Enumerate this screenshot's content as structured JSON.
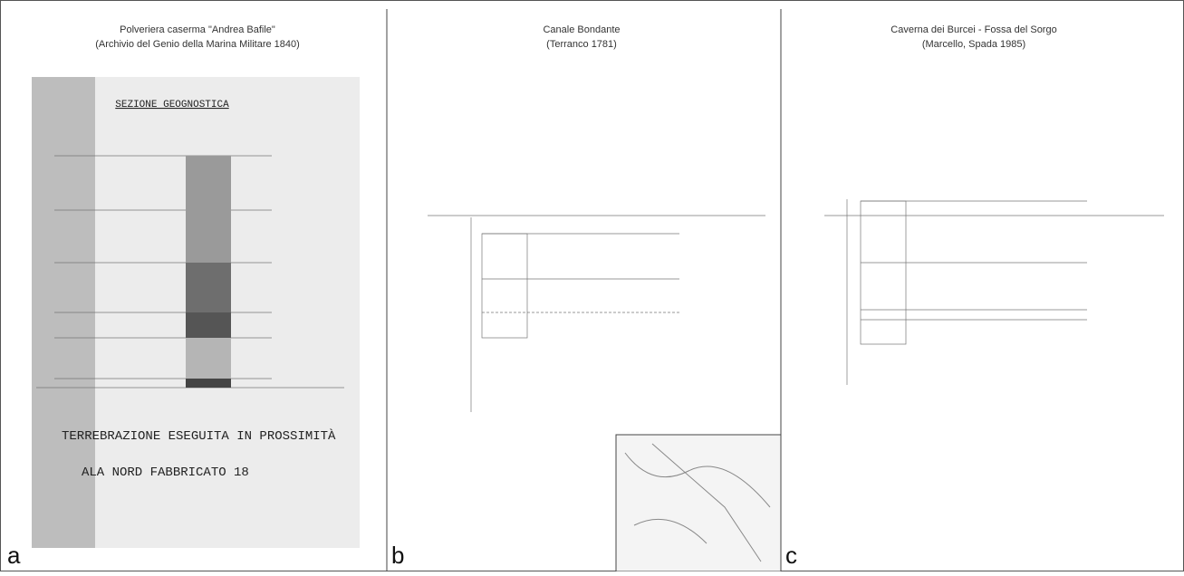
{
  "panels": [
    {
      "label": "a",
      "title": "Polveriera caserma \"Andrea Bafile\"",
      "subtitle": "(Archivio del Genio della Marina Militare 1840)",
      "heading": "SEZIONE GEOGNOSTICA",
      "notes": [
        "TERREBRAZIONE ESEGUITA IN PROSSIMITÀ",
        "ALA NORD FABBRICATO 18"
      ]
    },
    {
      "label": "b",
      "title": "Canale Bondante",
      "subtitle": "(Terranco 1781)"
    },
    {
      "label": "c",
      "title": "Caverna dei Burcei - Fossa del Sorgo",
      "subtitle": "(Marcello, Spada 1985)"
    }
  ]
}
